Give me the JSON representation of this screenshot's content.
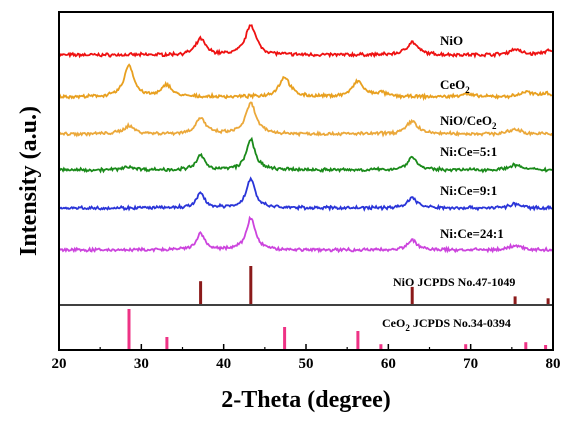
{
  "chart_data": {
    "type": "line",
    "title": "",
    "xlabel": "2-Theta (degree)",
    "ylabel": "Intensity (a.u.)",
    "xlim": [
      20,
      80
    ],
    "xticks": [
      "20",
      "30",
      "40",
      "50",
      "60",
      "70",
      "80"
    ],
    "grid": false,
    "series": [
      {
        "name": "NiO",
        "color": "#ee1111",
        "offset": 7,
        "baseline": 0.08,
        "peaks": [
          [
            37.2,
            0.5,
            0.7
          ],
          [
            43.3,
            0.95,
            0.75
          ],
          [
            62.9,
            0.4,
            0.8
          ],
          [
            75.4,
            0.18,
            0.8
          ],
          [
            79.4,
            0.12,
            0.8
          ]
        ]
      },
      {
        "name": "CeO",
        "name_sub": "2",
        "color": "#e8a020",
        "offset": 6,
        "baseline": 0.05,
        "peaks": [
          [
            28.5,
            1.0,
            0.7
          ],
          [
            33.1,
            0.38,
            0.7
          ],
          [
            47.4,
            0.62,
            0.8
          ],
          [
            56.3,
            0.48,
            0.8
          ],
          [
            59.1,
            0.12,
            0.8
          ],
          [
            69.4,
            0.1,
            0.8
          ],
          [
            76.7,
            0.15,
            0.8
          ],
          [
            79.1,
            0.12,
            0.8
          ]
        ]
      },
      {
        "name": "NiO/CeO",
        "name_sub": "2",
        "color": "#eba83a",
        "offset": 5,
        "baseline": 0.08,
        "peaks": [
          [
            28.5,
            0.25,
            0.8
          ],
          [
            37.2,
            0.5,
            0.7
          ],
          [
            43.3,
            0.95,
            0.75
          ],
          [
            62.9,
            0.4,
            0.8
          ],
          [
            75.4,
            0.15,
            0.8
          ]
        ]
      },
      {
        "name": "Ni:Ce=5:1",
        "color": "#1a8a1a",
        "offset": 4,
        "baseline": 0.1,
        "peaks": [
          [
            28.5,
            0.1,
            0.8
          ],
          [
            37.2,
            0.45,
            0.6
          ],
          [
            43.3,
            0.95,
            0.65
          ],
          [
            62.9,
            0.4,
            0.7
          ],
          [
            75.4,
            0.16,
            0.8
          ]
        ]
      },
      {
        "name": "Ni:Ce=9:1",
        "color": "#2a35d8",
        "offset": 3,
        "baseline": 0.08,
        "peaks": [
          [
            37.2,
            0.45,
            0.6
          ],
          [
            43.3,
            0.9,
            0.65
          ],
          [
            62.9,
            0.32,
            0.7
          ],
          [
            75.4,
            0.12,
            0.8
          ]
        ]
      },
      {
        "name": "Ni:Ce=24:1",
        "color": "#cc44dd",
        "offset": 2,
        "baseline": 0.08,
        "peaks": [
          [
            37.2,
            0.5,
            0.6
          ],
          [
            43.3,
            1.0,
            0.65
          ],
          [
            62.9,
            0.3,
            0.7
          ],
          [
            75.4,
            0.14,
            0.8
          ]
        ]
      }
    ],
    "references": [
      {
        "name": "NiO JCPDS No.47-1049",
        "color": "#8b1a1a",
        "lines": [
          [
            37.2,
            0.6
          ],
          [
            43.3,
            1.0
          ],
          [
            62.9,
            0.45
          ],
          [
            75.4,
            0.2
          ],
          [
            79.4,
            0.15
          ]
        ]
      },
      {
        "name": "CeO",
        "name_sub": "2",
        "name_rest": " JCPDS No.34-0394",
        "color": "#ee3385",
        "lines": [
          [
            28.5,
            1.0
          ],
          [
            33.1,
            0.3
          ],
          [
            47.4,
            0.55
          ],
          [
            56.3,
            0.45
          ],
          [
            59.1,
            0.12
          ],
          [
            69.4,
            0.12
          ],
          [
            76.7,
            0.17
          ],
          [
            79.1,
            0.1
          ]
        ]
      }
    ]
  }
}
